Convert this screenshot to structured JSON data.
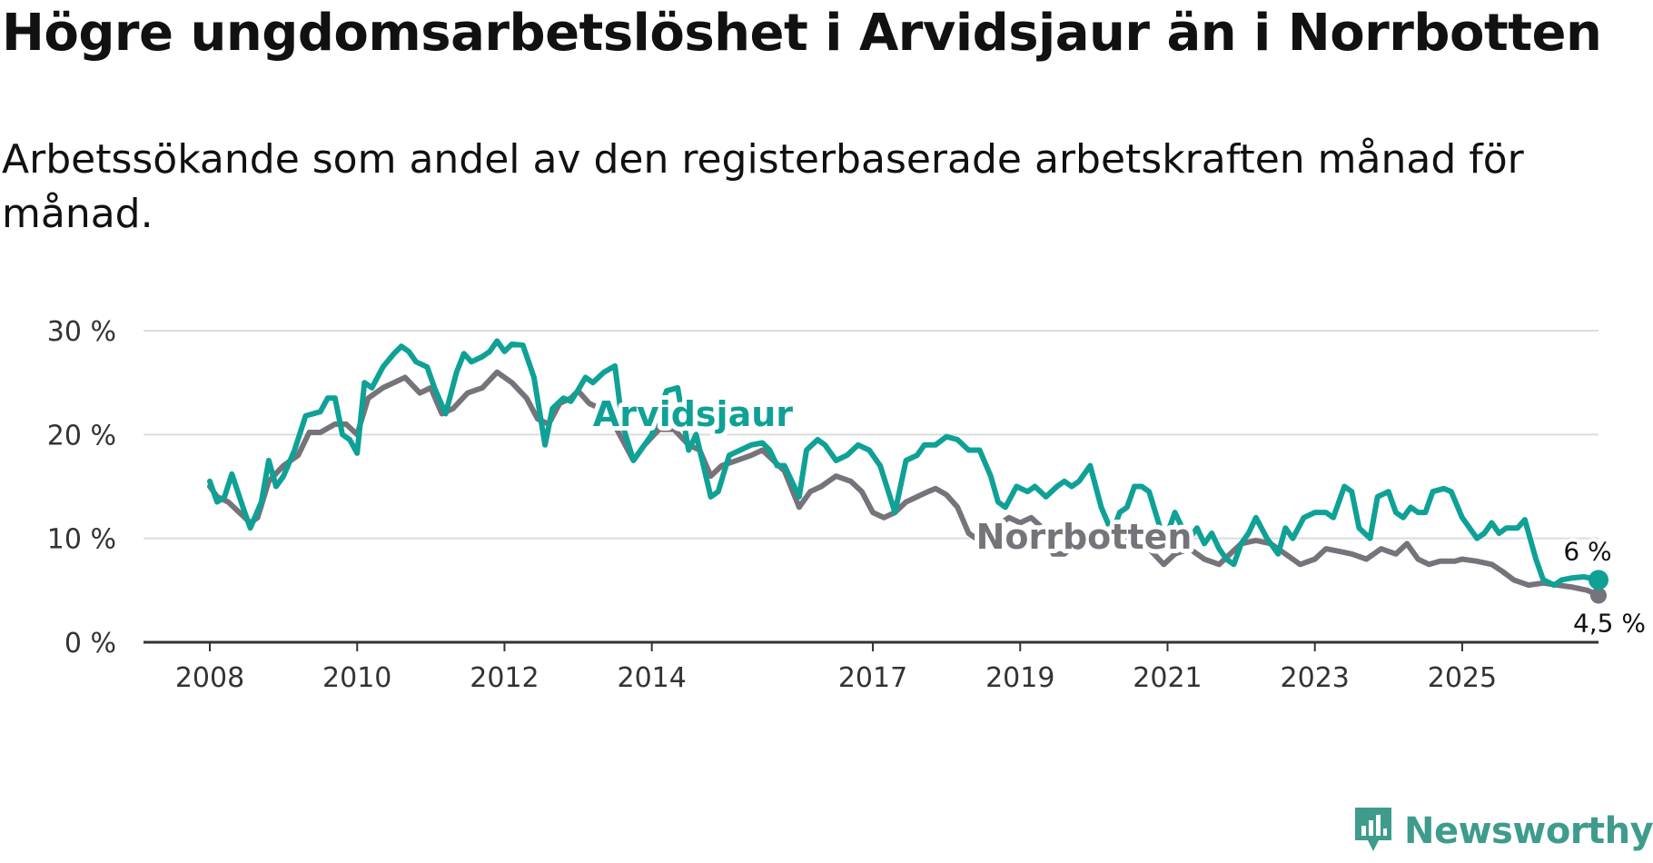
{
  "title": "Högre ungdomsarbetslöshet i Arvidsjaur än i Norrbotten",
  "subtitle": "Arbetssökande som andel av den registerbaserade arbetskraften månad för månad.",
  "logo_text": "Newsworthy",
  "colors": {
    "arvidsjaur": "#0fa196",
    "norrbotten": "#76737a",
    "grid": "#dddddd",
    "axis": "#333333",
    "logo": "#3f9c8c"
  },
  "chart_data": {
    "type": "line",
    "title": "Högre ungdomsarbetslöshet i Arvidsjaur än i Norrbotten",
    "xlabel": "",
    "ylabel": "",
    "ylim": [
      0,
      30
    ],
    "xlim": [
      2007.1,
      2026.85
    ],
    "y_ticks": [
      0,
      10,
      20,
      30
    ],
    "y_tick_labels": [
      "0 %",
      "10 %",
      "20 %",
      "30 %"
    ],
    "x_ticks": [
      2008,
      2010,
      2012,
      2014,
      2017,
      2019,
      2021,
      2023,
      2025
    ],
    "x_tick_labels": [
      "2008",
      "2010",
      "2012",
      "2014",
      "2017",
      "2019",
      "2021",
      "2023",
      "2025"
    ],
    "grid": true,
    "series": [
      {
        "name": "Arvidsjaur",
        "points": [
          [
            2008.0,
            15.5
          ],
          [
            2008.1,
            13.5
          ],
          [
            2008.2,
            14.0
          ],
          [
            2008.3,
            16.2
          ],
          [
            2008.45,
            13.0
          ],
          [
            2008.55,
            11.0
          ],
          [
            2008.7,
            13.5
          ],
          [
            2008.8,
            17.5
          ],
          [
            2008.9,
            15.0
          ],
          [
            2009.0,
            16.0
          ],
          [
            2009.15,
            18.5
          ],
          [
            2009.3,
            21.8
          ],
          [
            2009.5,
            22.2
          ],
          [
            2009.6,
            23.5
          ],
          [
            2009.7,
            23.5
          ],
          [
            2009.8,
            20.0
          ],
          [
            2009.9,
            19.5
          ],
          [
            2010.0,
            18.2
          ],
          [
            2010.1,
            25.0
          ],
          [
            2010.2,
            24.5
          ],
          [
            2010.35,
            26.5
          ],
          [
            2010.5,
            27.8
          ],
          [
            2010.6,
            28.5
          ],
          [
            2010.7,
            28.0
          ],
          [
            2010.8,
            27.0
          ],
          [
            2010.95,
            26.5
          ],
          [
            2011.05,
            24.5
          ],
          [
            2011.2,
            22.0
          ],
          [
            2011.35,
            26.0
          ],
          [
            2011.45,
            27.8
          ],
          [
            2011.55,
            27.0
          ],
          [
            2011.7,
            27.5
          ],
          [
            2011.8,
            28.0
          ],
          [
            2011.9,
            29.0
          ],
          [
            2012.0,
            28.0
          ],
          [
            2012.1,
            28.7
          ],
          [
            2012.25,
            28.6
          ],
          [
            2012.4,
            25.5
          ],
          [
            2012.55,
            19.0
          ],
          [
            2012.65,
            22.5
          ],
          [
            2012.8,
            23.5
          ],
          [
            2012.9,
            23.2
          ],
          [
            2013.0,
            24.3
          ],
          [
            2013.1,
            25.5
          ],
          [
            2013.2,
            25.0
          ],
          [
            2013.35,
            26.0
          ],
          [
            2013.5,
            26.6
          ],
          [
            2013.6,
            21.0
          ],
          [
            2013.75,
            17.5
          ],
          [
            2013.85,
            18.5
          ],
          [
            2014.0,
            20.0
          ],
          [
            2014.2,
            24.2
          ],
          [
            2014.35,
            24.5
          ],
          [
            2014.5,
            18.5
          ],
          [
            2014.6,
            20.0
          ],
          [
            2014.7,
            17.0
          ],
          [
            2014.8,
            14.0
          ],
          [
            2014.9,
            14.5
          ],
          [
            2015.05,
            18.0
          ],
          [
            2015.2,
            18.5
          ],
          [
            2015.35,
            19.0
          ],
          [
            2015.5,
            19.2
          ],
          [
            2015.6,
            18.5
          ],
          [
            2015.7,
            17.0
          ],
          [
            2015.8,
            17.0
          ],
          [
            2016.0,
            14.0
          ],
          [
            2016.1,
            18.5
          ],
          [
            2016.25,
            19.5
          ],
          [
            2016.35,
            19.0
          ],
          [
            2016.5,
            17.5
          ],
          [
            2016.65,
            18.0
          ],
          [
            2016.8,
            19.0
          ],
          [
            2016.95,
            18.5
          ],
          [
            2017.1,
            17.0
          ],
          [
            2017.3,
            12.5
          ],
          [
            2017.45,
            17.5
          ],
          [
            2017.6,
            18.0
          ],
          [
            2017.7,
            19.0
          ],
          [
            2017.85,
            19.0
          ],
          [
            2018.0,
            19.8
          ],
          [
            2018.15,
            19.5
          ],
          [
            2018.3,
            18.5
          ],
          [
            2018.45,
            18.5
          ],
          [
            2018.6,
            16.0
          ],
          [
            2018.7,
            13.5
          ],
          [
            2018.8,
            13.0
          ],
          [
            2018.95,
            15.0
          ],
          [
            2019.1,
            14.5
          ],
          [
            2019.2,
            15.0
          ],
          [
            2019.35,
            14.0
          ],
          [
            2019.5,
            15.0
          ],
          [
            2019.6,
            15.5
          ],
          [
            2019.7,
            15.0
          ],
          [
            2019.8,
            15.5
          ],
          [
            2019.95,
            17.0
          ],
          [
            2020.1,
            13.0
          ],
          [
            2020.25,
            10.5
          ],
          [
            2020.35,
            12.5
          ],
          [
            2020.45,
            13.0
          ],
          [
            2020.55,
            15.0
          ],
          [
            2020.65,
            15.0
          ],
          [
            2020.75,
            14.5
          ],
          [
            2020.9,
            11.0
          ],
          [
            2021.0,
            10.5
          ],
          [
            2021.1,
            12.5
          ],
          [
            2021.2,
            11.0
          ],
          [
            2021.3,
            10.0
          ],
          [
            2021.4,
            11.0
          ],
          [
            2021.5,
            9.5
          ],
          [
            2021.6,
            10.5
          ],
          [
            2021.7,
            9.0
          ],
          [
            2021.8,
            8.0
          ],
          [
            2021.9,
            7.5
          ],
          [
            2022.0,
            9.5
          ],
          [
            2022.1,
            10.5
          ],
          [
            2022.2,
            12.0
          ],
          [
            2022.35,
            10.0
          ],
          [
            2022.5,
            8.5
          ],
          [
            2022.6,
            11.0
          ],
          [
            2022.7,
            10.0
          ],
          [
            2022.85,
            12.0
          ],
          [
            2023.0,
            12.5
          ],
          [
            2023.15,
            12.5
          ],
          [
            2023.25,
            12.0
          ],
          [
            2023.4,
            15.0
          ],
          [
            2023.5,
            14.5
          ],
          [
            2023.6,
            11.0
          ],
          [
            2023.75,
            10.0
          ],
          [
            2023.85,
            14.0
          ],
          [
            2024.0,
            14.5
          ],
          [
            2024.1,
            12.5
          ],
          [
            2024.2,
            12.0
          ],
          [
            2024.3,
            13.0
          ],
          [
            2024.4,
            12.5
          ],
          [
            2024.5,
            12.5
          ],
          [
            2024.6,
            14.5
          ],
          [
            2024.75,
            14.8
          ],
          [
            2024.85,
            14.5
          ],
          [
            2025.0,
            12.0
          ],
          [
            2025.1,
            11.0
          ],
          [
            2025.2,
            10.0
          ],
          [
            2025.3,
            10.5
          ],
          [
            2025.4,
            11.5
          ],
          [
            2025.5,
            10.5
          ],
          [
            2025.6,
            11.0
          ],
          [
            2025.75,
            11.0
          ],
          [
            2025.85,
            11.8
          ],
          [
            2026.0,
            8.0
          ],
          [
            2026.1,
            6.0
          ],
          [
            2026.25,
            5.5
          ],
          [
            2026.35,
            6.0
          ],
          [
            2026.5,
            6.2
          ],
          [
            2026.65,
            6.3
          ],
          [
            2026.8,
            6.1
          ],
          [
            2026.85,
            6.0
          ]
        ]
      },
      {
        "name": "Norrbotten",
        "points": [
          [
            2008.0,
            15.0
          ],
          [
            2008.1,
            14.0
          ],
          [
            2008.25,
            13.5
          ],
          [
            2008.4,
            12.5
          ],
          [
            2008.55,
            11.5
          ],
          [
            2008.65,
            12.0
          ],
          [
            2008.8,
            15.5
          ],
          [
            2009.0,
            17.0
          ],
          [
            2009.2,
            18.0
          ],
          [
            2009.35,
            20.2
          ],
          [
            2009.5,
            20.2
          ],
          [
            2009.7,
            21.0
          ],
          [
            2009.85,
            21.0
          ],
          [
            2010.0,
            20.0
          ],
          [
            2010.15,
            23.5
          ],
          [
            2010.35,
            24.5
          ],
          [
            2010.5,
            25.0
          ],
          [
            2010.65,
            25.5
          ],
          [
            2010.85,
            24.0
          ],
          [
            2011.0,
            24.5
          ],
          [
            2011.15,
            22.0
          ],
          [
            2011.3,
            22.5
          ],
          [
            2011.5,
            24.0
          ],
          [
            2011.7,
            24.5
          ],
          [
            2011.9,
            26.0
          ],
          [
            2012.1,
            25.0
          ],
          [
            2012.3,
            23.5
          ],
          [
            2012.45,
            21.5
          ],
          [
            2012.6,
            21.0
          ],
          [
            2012.75,
            23.0
          ],
          [
            2012.9,
            23.5
          ],
          [
            2013.0,
            24.2
          ],
          [
            2013.15,
            23.0
          ],
          [
            2013.3,
            22.5
          ],
          [
            2013.45,
            21.5
          ],
          [
            2013.6,
            19.5
          ],
          [
            2013.75,
            17.5
          ],
          [
            2013.9,
            19.0
          ],
          [
            2014.1,
            20.5
          ],
          [
            2014.3,
            20.5
          ],
          [
            2014.5,
            19.0
          ],
          [
            2014.65,
            18.5
          ],
          [
            2014.8,
            16.0
          ],
          [
            2014.95,
            17.0
          ],
          [
            2015.15,
            17.5
          ],
          [
            2015.35,
            18.0
          ],
          [
            2015.5,
            18.5
          ],
          [
            2015.65,
            17.5
          ],
          [
            2015.8,
            16.5
          ],
          [
            2016.0,
            13.0
          ],
          [
            2016.15,
            14.5
          ],
          [
            2016.3,
            15.0
          ],
          [
            2016.5,
            16.0
          ],
          [
            2016.7,
            15.5
          ],
          [
            2016.85,
            14.5
          ],
          [
            2017.0,
            12.5
          ],
          [
            2017.15,
            12.0
          ],
          [
            2017.3,
            12.5
          ],
          [
            2017.45,
            13.5
          ],
          [
            2017.6,
            14.0
          ],
          [
            2017.75,
            14.5
          ],
          [
            2017.85,
            14.8
          ],
          [
            2018.0,
            14.2
          ],
          [
            2018.15,
            13.0
          ],
          [
            2018.3,
            10.5
          ],
          [
            2018.4,
            10.0
          ],
          [
            2018.55,
            11.0
          ],
          [
            2018.7,
            11.3
          ],
          [
            2018.85,
            12.0
          ],
          [
            2019.0,
            11.5
          ],
          [
            2019.15,
            12.0
          ],
          [
            2019.3,
            11.0
          ],
          [
            2019.45,
            8.5
          ],
          [
            2019.6,
            8.5
          ],
          [
            2019.75,
            9.5
          ],
          [
            2019.9,
            10.5
          ],
          [
            2020.1,
            10.8
          ],
          [
            2020.25,
            10.5
          ],
          [
            2020.4,
            10.5
          ],
          [
            2020.55,
            9.5
          ],
          [
            2020.75,
            9.0
          ],
          [
            2020.95,
            7.5
          ],
          [
            2021.1,
            8.5
          ],
          [
            2021.3,
            9.0
          ],
          [
            2021.5,
            8.0
          ],
          [
            2021.7,
            7.5
          ],
          [
            2021.85,
            8.5
          ],
          [
            2022.0,
            9.5
          ],
          [
            2022.2,
            9.8
          ],
          [
            2022.4,
            9.5
          ],
          [
            2022.6,
            8.5
          ],
          [
            2022.8,
            7.5
          ],
          [
            2023.0,
            8.0
          ],
          [
            2023.15,
            9.0
          ],
          [
            2023.3,
            8.8
          ],
          [
            2023.5,
            8.5
          ],
          [
            2023.7,
            8.0
          ],
          [
            2023.9,
            9.0
          ],
          [
            2024.1,
            8.5
          ],
          [
            2024.25,
            9.5
          ],
          [
            2024.4,
            8.0
          ],
          [
            2024.55,
            7.5
          ],
          [
            2024.7,
            7.8
          ],
          [
            2024.9,
            7.8
          ],
          [
            2025.0,
            8.0
          ],
          [
            2025.2,
            7.8
          ],
          [
            2025.4,
            7.5
          ],
          [
            2025.55,
            6.8
          ],
          [
            2025.7,
            6.0
          ],
          [
            2025.9,
            5.5
          ],
          [
            2026.1,
            5.7
          ],
          [
            2026.3,
            5.5
          ],
          [
            2026.5,
            5.3
          ],
          [
            2026.7,
            5.0
          ],
          [
            2026.85,
            4.5
          ]
        ]
      }
    ],
    "series_labels": [
      {
        "series": "Arvidsjaur",
        "text": "Arvidsjaur",
        "x": 2013.2,
        "y": 20.8
      },
      {
        "series": "Norrbotten",
        "text": "Norrbotten",
        "x": 2018.4,
        "y": 9.0
      }
    ],
    "end_labels": [
      {
        "series": "Arvidsjaur",
        "text": "6 %",
        "value": 6.0
      },
      {
        "series": "Norrbotten",
        "text": "4,5 %",
        "value": 4.5
      }
    ]
  }
}
